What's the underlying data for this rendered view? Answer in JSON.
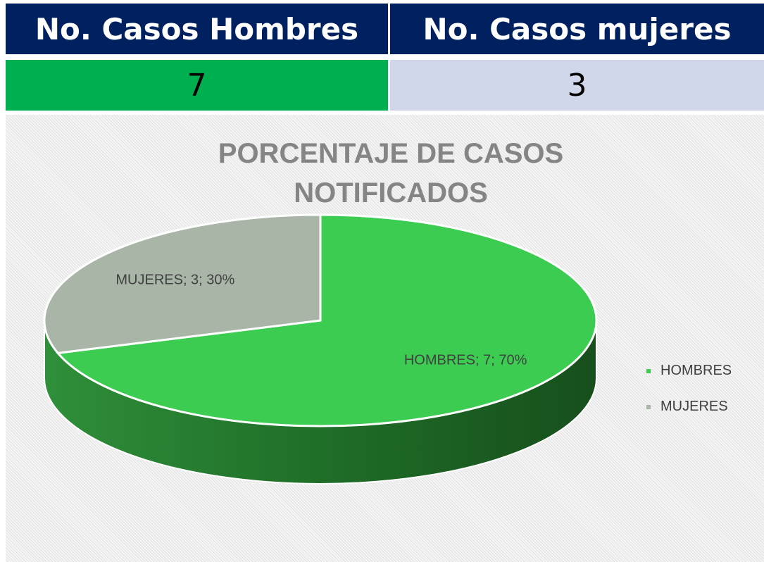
{
  "table": {
    "headers": [
      "No. Casos Hombres",
      "No. Casos mujeres"
    ],
    "values": [
      "7",
      "3"
    ]
  },
  "chart_data": {
    "type": "pie",
    "title": "PORCENTAJE DE CASOS NOTIFICADOS",
    "categories": [
      "HOMBRES",
      "MUJERES"
    ],
    "values": [
      70,
      30
    ],
    "value_labels": [
      "HOMBRES; 7; 70%",
      "MUJERES; 3; 30%"
    ],
    "colors": [
      "#3ccc52",
      "#a9b6a7"
    ],
    "legend": "right"
  }
}
